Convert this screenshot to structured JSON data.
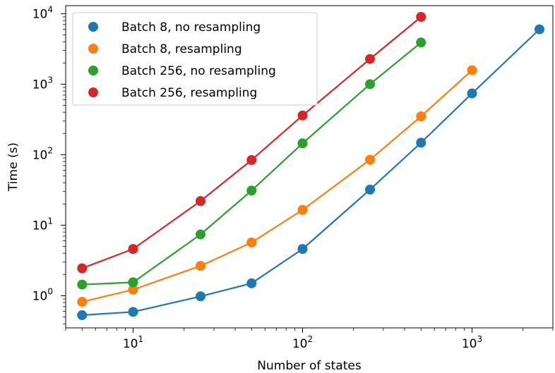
{
  "chart_data": {
    "type": "line",
    "xlabel": "Number of states",
    "ylabel": "Time (s)",
    "xscale": "log",
    "yscale": "log",
    "xlim": [
      4,
      3000
    ],
    "ylim": [
      0.35,
      13000
    ],
    "x_ticks": [
      {
        "value": 10,
        "base": "10",
        "exp": "1"
      },
      {
        "value": 100,
        "base": "10",
        "exp": "2"
      },
      {
        "value": 1000,
        "base": "10",
        "exp": "3"
      }
    ],
    "y_ticks": [
      {
        "value": 1,
        "base": "10",
        "exp": "0"
      },
      {
        "value": 10,
        "base": "10",
        "exp": "1"
      },
      {
        "value": 100,
        "base": "10",
        "exp": "2"
      },
      {
        "value": 1000,
        "base": "10",
        "exp": "3"
      },
      {
        "value": 10000,
        "base": "10",
        "exp": "4"
      }
    ],
    "grid": false,
    "legend_position": "top-left",
    "series": [
      {
        "name": "Batch 8, no resampling",
        "color": "#1f77b4",
        "x": [
          5,
          10,
          25,
          50,
          100,
          250,
          500,
          1000,
          2500
        ],
        "y": [
          0.53,
          0.59,
          0.98,
          1.5,
          4.6,
          32,
          148,
          740,
          6000
        ]
      },
      {
        "name": "Batch 8, resampling",
        "color": "#ff7f0e",
        "x": [
          5,
          10,
          25,
          50,
          100,
          250,
          500,
          1000
        ],
        "y": [
          0.82,
          1.22,
          2.65,
          5.7,
          16.5,
          85,
          350,
          1580
        ]
      },
      {
        "name": "Batch 256, no resampling",
        "color": "#2ca02c",
        "x": [
          5,
          10,
          25,
          50,
          100,
          250,
          500
        ],
        "y": [
          1.44,
          1.55,
          7.4,
          31,
          145,
          1000,
          3900
        ]
      },
      {
        "name": "Batch 256, resampling",
        "color": "#d62728",
        "x": [
          5,
          10,
          25,
          50,
          100,
          250,
          500
        ],
        "y": [
          2.45,
          4.6,
          22,
          84,
          360,
          2280,
          9000
        ]
      }
    ]
  }
}
